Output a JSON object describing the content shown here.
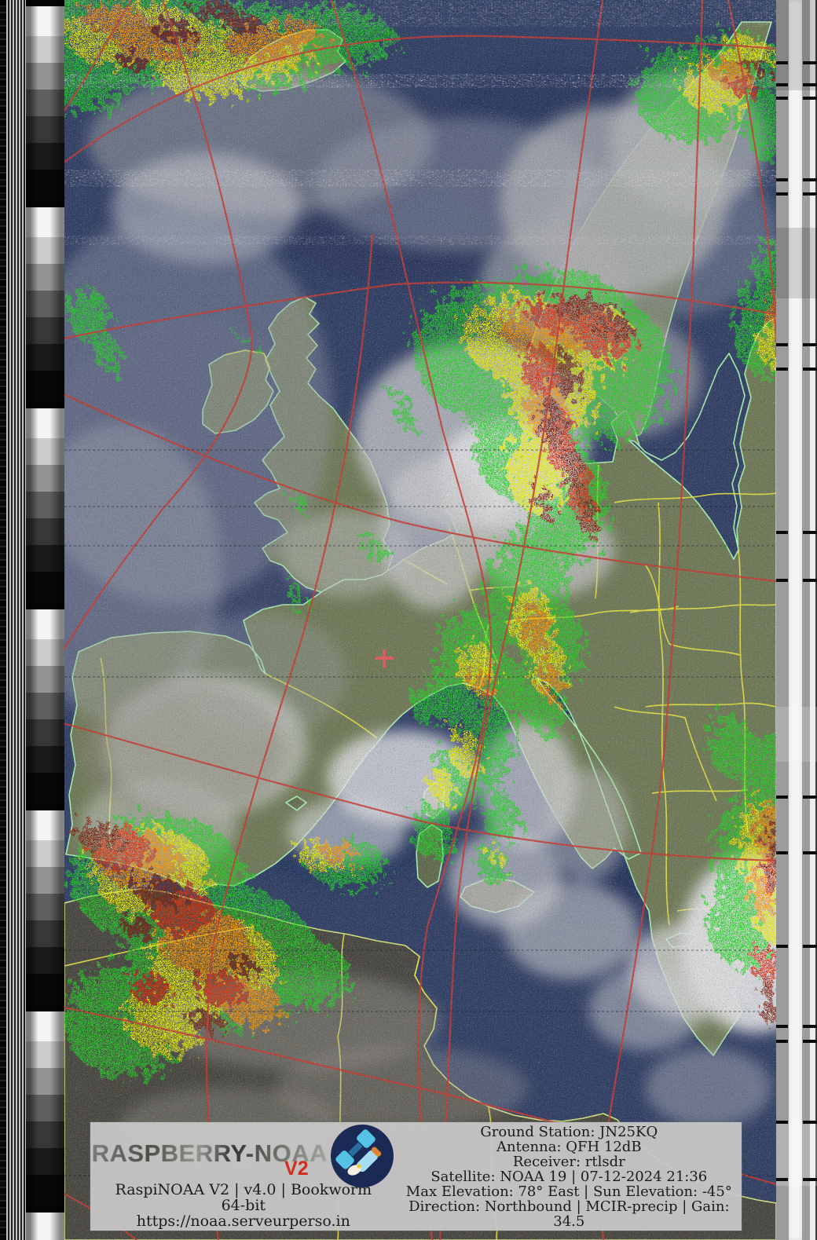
{
  "footer": {
    "logo": {
      "brand": "RASPBERRY-NOAA",
      "version_badge": "V2"
    },
    "left_lines": [
      "RaspiNOAA V2 | v4.0 | Bookworm 64-bit",
      "https://noaa.serveurperso.in"
    ],
    "right_lines": [
      "Ground Station: JN25KQ",
      "Antenna: QFH 12dB",
      "Receiver: rtlsdr",
      "Satellite: NOAA 19 | 07-12-2024 21:36",
      "Max Elevation: 78° East | Sun Elevation: -45°",
      "Direction: Northbound | MCIR-precip | Gain: 34.5"
    ]
  },
  "marker": {
    "ground_station_symbol": "+"
  },
  "colors": {
    "banner_bg": "#c6c6c6",
    "banner_text": "#1b1b1b",
    "logo_red": "#d42a20",
    "badge_navy": "#1b2a55",
    "badge_blue": "#55c2e6",
    "ocean": "#2e3c60",
    "land": "#6e7852",
    "land_dark": "#46443a",
    "coast": "#a9f2ad",
    "border": "#e8e23c",
    "graticule": "#c8352b",
    "precip_green": "#1fd41f",
    "precip_yellow": "#f2f200",
    "precip_orange": "#ff9400",
    "precip_red": "#e32400",
    "precip_darkred": "#7d1403",
    "marker": "#e05858",
    "cloud": "#d2d2d2"
  }
}
